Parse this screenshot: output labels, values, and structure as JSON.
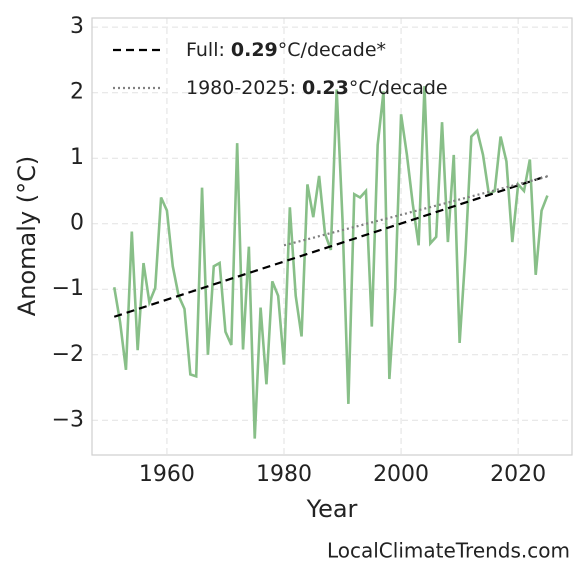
{
  "chart_data": {
    "type": "line",
    "xlabel": "Year",
    "ylabel": "Anomaly (°C)",
    "credit": "LocalClimateTrends.com",
    "xlim": [
      1947.2,
      2029.2
    ],
    "ylim": [
      -3.53,
      3.14
    ],
    "xticks": [
      1960,
      1980,
      2000,
      2020
    ],
    "yticks": [
      {
        "value": -3,
        "label": "−3"
      },
      {
        "value": -2,
        "label": "−2"
      },
      {
        "value": -1,
        "label": "−1"
      },
      0,
      1,
      2,
      3
    ],
    "grid": true,
    "legend_position": "upper left",
    "series": [
      {
        "color": "#88bf88",
        "style": "solid",
        "x": [
          1951,
          1952,
          1953,
          1954,
          1955,
          1956,
          1957,
          1958,
          1959,
          1960,
          1961,
          1962,
          1963,
          1964,
          1965,
          1966,
          1967,
          1968,
          1969,
          1970,
          1971,
          1972,
          1973,
          1974,
          1975,
          1976,
          1977,
          1978,
          1979,
          1980,
          1981,
          1982,
          1983,
          1984,
          1985,
          1986,
          1987,
          1988,
          1989,
          1990,
          1991,
          1992,
          1993,
          1994,
          1995,
          1996,
          1997,
          1998,
          1999,
          2000,
          2001,
          2002,
          2003,
          2004,
          2005,
          2006,
          2007,
          2008,
          2009,
          2010,
          2011,
          2012,
          2013,
          2014,
          2015,
          2016,
          2017,
          2018,
          2019,
          2020,
          2021,
          2022,
          2023,
          2024,
          2025
        ],
        "values": [
          -0.97,
          -1.5,
          -2.23,
          -0.12,
          -1.93,
          -0.6,
          -1.2,
          -0.98,
          0.4,
          0.2,
          -0.65,
          -1.1,
          -1.3,
          -2.3,
          -2.33,
          0.55,
          -2.0,
          -0.65,
          -0.6,
          -1.65,
          -1.85,
          1.23,
          -1.92,
          -0.35,
          -3.28,
          -1.28,
          -2.45,
          -0.88,
          -1.1,
          -2.15,
          0.25,
          -1.1,
          -1.72,
          0.6,
          0.1,
          0.73,
          -0.15,
          -0.4,
          2.05,
          0.05,
          -2.75,
          0.45,
          0.4,
          0.5,
          -1.57,
          1.2,
          2.02,
          -2.37,
          -1.0,
          1.67,
          1.05,
          0.3,
          -0.33,
          2.1,
          -0.3,
          -0.2,
          1.55,
          -0.28,
          1.05,
          -1.82,
          -0.45,
          1.33,
          1.42,
          1.05,
          0.45,
          0.5,
          1.33,
          0.95,
          -0.28,
          0.6,
          0.5,
          0.98,
          -0.78,
          0.2,
          0.43
        ]
      },
      {
        "color": "#000000",
        "style": "dashed",
        "x": [
          1951,
          2025
        ],
        "values": [
          -1.42,
          0.73
        ],
        "legend": {
          "prefix": "Full:",
          "slope": 0.29,
          "unit": "°C/decade*"
        }
      },
      {
        "color": "#808080",
        "style": "dotted",
        "x": [
          1980,
          2025
        ],
        "values": [
          -0.33,
          0.72
        ],
        "legend": {
          "prefix": "1980-2025:",
          "slope": 0.23,
          "unit": "°C/decade"
        }
      }
    ]
  }
}
